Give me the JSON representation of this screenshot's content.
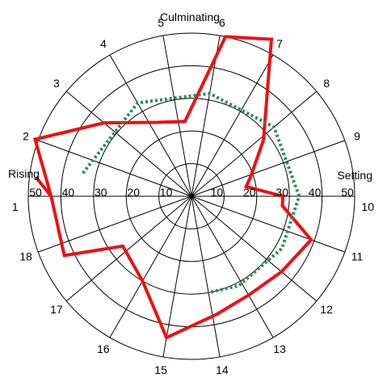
{
  "chart_data": {
    "type": "radar",
    "title": "",
    "direction_labels": {
      "top": "Culminating",
      "left": "Rising",
      "right": "Setting"
    },
    "rlim": [
      0,
      50
    ],
    "radial_ticks": [
      10,
      20,
      30,
      40,
      50
    ],
    "radial_tick_labels": [
      "10",
      "20",
      "30",
      "40",
      "50"
    ],
    "spoke_labels": [
      "1",
      "2",
      "3",
      "4",
      "5",
      "6",
      "7",
      "8",
      "9",
      "10",
      "11",
      "12",
      "13",
      "14",
      "15",
      "16",
      "17",
      "18"
    ],
    "spoke_angles_deg": [
      180,
      160,
      140,
      120,
      100,
      80,
      60,
      40,
      20,
      0,
      -20,
      -40,
      -60,
      -80,
      -100,
      -120,
      -140,
      -160
    ],
    "series": [
      {
        "color": "#ee1111",
        "style": "solid",
        "points": [
          {
            "angle": 173,
            "r": 48
          },
          {
            "angle": 180,
            "r": 43
          },
          {
            "angle": 160,
            "r": 51
          },
          {
            "angle": 140,
            "r": 35
          },
          {
            "angle": 115,
            "r": 25
          },
          {
            "angle": 95,
            "r": 23
          },
          {
            "angle": 78,
            "r": 50
          },
          {
            "angle": 63,
            "r": 54
          },
          {
            "angle": 38,
            "r": 28
          },
          {
            "angle": 18,
            "r": 19
          },
          {
            "angle": 10,
            "r": 17
          },
          {
            "angle": 0,
            "r": 28
          },
          {
            "angle": -6,
            "r": 28
          },
          {
            "angle": -20,
            "r": 39
          },
          {
            "angle": -40,
            "r": 36
          },
          {
            "angle": -60,
            "r": 35
          },
          {
            "angle": -78,
            "r": 37
          },
          {
            "angle": -100,
            "r": 44
          },
          {
            "angle": -120,
            "r": 30
          },
          {
            "angle": -144,
            "r": 26
          },
          {
            "angle": -155,
            "r": 43
          },
          {
            "angle": 180,
            "r": 43
          }
        ]
      },
      {
        "color": "#2e8b57",
        "style": "dotted",
        "points": [
          {
            "angle": 168,
            "r": 34
          },
          {
            "angle": 120,
            "r": 33
          },
          {
            "angle": 80,
            "r": 32
          },
          {
            "angle": 40,
            "r": 33
          },
          {
            "angle": 0,
            "r": 33
          },
          {
            "angle": -30,
            "r": 32
          },
          {
            "angle": -62,
            "r": 31
          },
          {
            "angle": -80,
            "r": 30
          }
        ]
      }
    ]
  }
}
